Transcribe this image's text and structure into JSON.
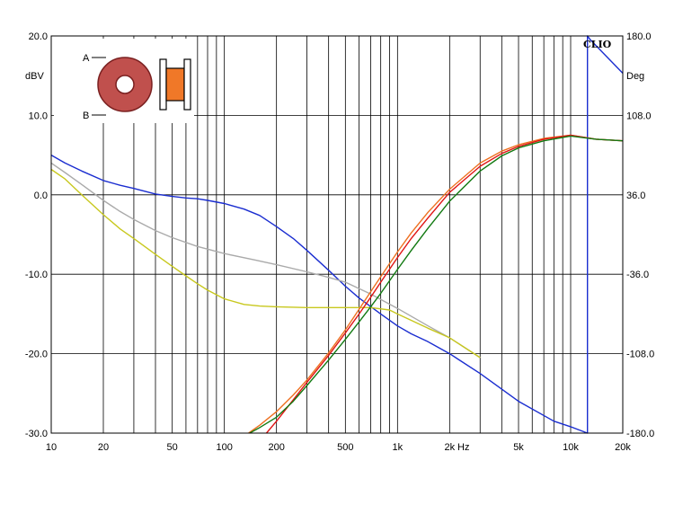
{
  "chart_data": {
    "type": "line",
    "brand": "CLIO",
    "left_unit": "dBV",
    "right_unit": "Deg",
    "x_unit": "Hz",
    "x_scale": "log",
    "xlim": [
      10,
      20000
    ],
    "ylim_left": [
      -30,
      20
    ],
    "ylim_right": [
      -180,
      180
    ],
    "grid": true,
    "x_tick_labels": [
      {
        "value": 10,
        "label": "10"
      },
      {
        "value": 20,
        "label": "20"
      },
      {
        "value": 50,
        "label": "50"
      },
      {
        "value": 100,
        "label": "100"
      },
      {
        "value": 200,
        "label": "200"
      },
      {
        "value": 500,
        "label": "500"
      },
      {
        "value": 1000,
        "label": "1k"
      },
      {
        "value": 2000,
        "label": "2k"
      },
      {
        "value": 5000,
        "label": "5k"
      },
      {
        "value": 10000,
        "label": "10k"
      },
      {
        "value": 20000,
        "label": "20k"
      }
    ],
    "y_left_ticks": [
      {
        "value": 20,
        "label": "20.0"
      },
      {
        "value": 10,
        "label": "10.0"
      },
      {
        "value": 0,
        "label": "0.0"
      },
      {
        "value": -10,
        "label": "-10.0"
      },
      {
        "value": -20,
        "label": "-20.0"
      },
      {
        "value": -30,
        "label": "-30.0"
      }
    ],
    "y_right_ticks": [
      {
        "value": 180,
        "label": "180.0"
      },
      {
        "value": 108,
        "label": "108.0"
      },
      {
        "value": 36,
        "label": "36.0"
      },
      {
        "value": -36,
        "label": "-36.0"
      },
      {
        "value": -108,
        "label": "-108.0"
      },
      {
        "value": -180,
        "label": "-180.0"
      }
    ],
    "inset": {
      "label_a": "A",
      "label_b": "B",
      "ring_color": "#c0504d",
      "plug_color": "#f07828"
    },
    "series": [
      {
        "color": "#1a2dd0",
        "x": [
          10,
          12,
          15,
          20,
          25,
          30,
          40,
          50,
          60,
          70,
          80,
          100,
          130,
          160,
          200,
          250,
          300,
          400,
          500,
          600,
          800,
          1000,
          1200,
          1500,
          2000,
          3000,
          5000,
          8000,
          10000,
          12500,
          12500,
          13000,
          20000
        ],
        "y": [
          5,
          4,
          3,
          1.8,
          1.2,
          0.8,
          0.1,
          -0.2,
          -0.4,
          -0.5,
          -0.7,
          -1.1,
          -1.8,
          -2.6,
          -4,
          -5.5,
          -7,
          -9.5,
          -11.5,
          -13,
          -15,
          -16.5,
          -17.5,
          -18.5,
          -20,
          -22.5,
          -26,
          -28.5,
          -29.2,
          -30,
          20,
          19.5,
          15.3
        ]
      },
      {
        "color": "#aaaaaa",
        "x": [
          10,
          12,
          15,
          20,
          25,
          30,
          40,
          50,
          70,
          100,
          150,
          200,
          300,
          400,
          500,
          700,
          1000,
          1500,
          2000,
          3000
        ],
        "y": [
          4,
          2.8,
          1.3,
          -0.7,
          -2.1,
          -3.1,
          -4.5,
          -5.4,
          -6.5,
          -7.4,
          -8.2,
          -8.8,
          -9.7,
          -10.4,
          -11,
          -12.5,
          -14.3,
          -16.5,
          -18,
          -20.5
        ]
      },
      {
        "color": "#c8c81e",
        "x": [
          10,
          12,
          15,
          20,
          25,
          30,
          40,
          50,
          60,
          70,
          80,
          100,
          130,
          160,
          200,
          300,
          500,
          700,
          900,
          1000,
          1200,
          1500,
          2000,
          3000
        ],
        "y": [
          3.2,
          2,
          0,
          -2.5,
          -4.3,
          -5.5,
          -7.5,
          -9,
          -10.2,
          -11.2,
          -12,
          -13.1,
          -13.8,
          -14,
          -14.1,
          -14.2,
          -14.2,
          -14.2,
          -14.5,
          -15,
          -15.8,
          -16.8,
          -18,
          -20.5
        ]
      },
      {
        "color": "#ee7020",
        "x": [
          138,
          160,
          200,
          250,
          300,
          400,
          500,
          600,
          700,
          800,
          1000,
          1200,
          1500,
          2000,
          3000,
          4000,
          5000,
          7000,
          10000,
          14000,
          20000
        ],
        "y": [
          -30,
          -29,
          -27.3,
          -25.2,
          -23.3,
          -19.9,
          -17,
          -14.4,
          -12.2,
          -10.3,
          -7.2,
          -4.8,
          -2.2,
          0.7,
          4,
          5.5,
          6.3,
          7.1,
          7.5,
          7,
          6.8
        ]
      },
      {
        "color": "#e01414",
        "x": [
          175,
          200,
          250,
          300,
          400,
          500,
          600,
          700,
          800,
          1000,
          1200,
          1500,
          2000,
          3000,
          4000,
          5000,
          7000,
          10000,
          14000,
          20000
        ],
        "y": [
          -30,
          -28.5,
          -25.8,
          -23.6,
          -20.2,
          -17.4,
          -15,
          -12.9,
          -11,
          -7.9,
          -5.5,
          -2.9,
          0.3,
          3.6,
          5.2,
          6.1,
          7,
          7.5,
          7,
          6.8
        ]
      },
      {
        "color": "#127a12",
        "x": [
          140,
          160,
          200,
          250,
          300,
          400,
          500,
          600,
          700,
          800,
          1000,
          1200,
          1500,
          2000,
          3000,
          4000,
          5000,
          7000,
          10000,
          14000,
          20000
        ],
        "y": [
          -30,
          -29.3,
          -28,
          -26,
          -24,
          -20.8,
          -18.2,
          -16,
          -14.1,
          -12.4,
          -9.4,
          -7,
          -4.2,
          -0.8,
          3,
          4.9,
          5.9,
          6.8,
          7.4,
          7,
          6.8
        ]
      }
    ]
  }
}
